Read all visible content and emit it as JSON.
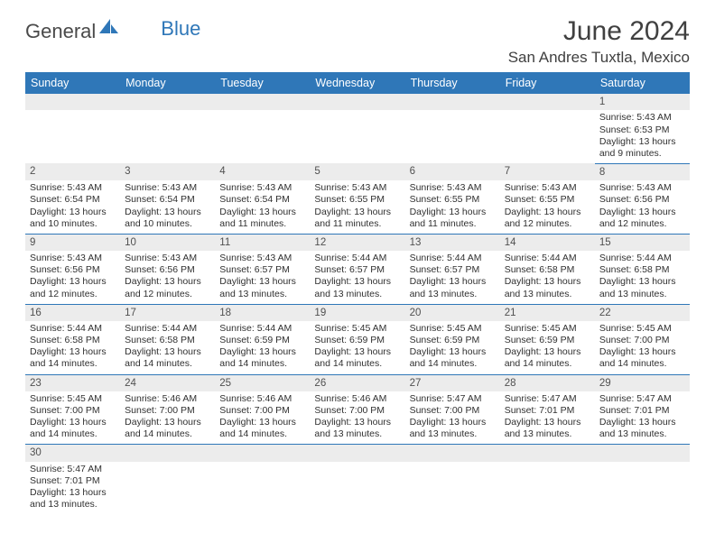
{
  "logo": {
    "text1": "General",
    "text2": "Blue"
  },
  "title": "June 2024",
  "location": "San Andres Tuxtla, Mexico",
  "colors": {
    "header_bg": "#2f77b8",
    "header_fg": "#ffffff",
    "daynum_bg": "#ececec",
    "row_divider": "#2f77b8",
    "logo_blue": "#2f77b8",
    "text": "#303030",
    "title_text": "#404040",
    "background": "#ffffff"
  },
  "typography": {
    "title_fontsize": 30,
    "location_fontsize": 17,
    "dayheader_fontsize": 12.5,
    "daynum_fontsize": 11.5,
    "cell_fontsize": 10.5
  },
  "layout": {
    "columns": 7,
    "start_day_index": 6
  },
  "day_headers": [
    "Sunday",
    "Monday",
    "Tuesday",
    "Wednesday",
    "Thursday",
    "Friday",
    "Saturday"
  ],
  "days": [
    {
      "n": 1,
      "sunrise": "5:43 AM",
      "sunset": "6:53 PM",
      "daylight": "13 hours and 9 minutes."
    },
    {
      "n": 2,
      "sunrise": "5:43 AM",
      "sunset": "6:54 PM",
      "daylight": "13 hours and 10 minutes."
    },
    {
      "n": 3,
      "sunrise": "5:43 AM",
      "sunset": "6:54 PM",
      "daylight": "13 hours and 10 minutes."
    },
    {
      "n": 4,
      "sunrise": "5:43 AM",
      "sunset": "6:54 PM",
      "daylight": "13 hours and 11 minutes."
    },
    {
      "n": 5,
      "sunrise": "5:43 AM",
      "sunset": "6:55 PM",
      "daylight": "13 hours and 11 minutes."
    },
    {
      "n": 6,
      "sunrise": "5:43 AM",
      "sunset": "6:55 PM",
      "daylight": "13 hours and 11 minutes."
    },
    {
      "n": 7,
      "sunrise": "5:43 AM",
      "sunset": "6:55 PM",
      "daylight": "13 hours and 12 minutes."
    },
    {
      "n": 8,
      "sunrise": "5:43 AM",
      "sunset": "6:56 PM",
      "daylight": "13 hours and 12 minutes."
    },
    {
      "n": 9,
      "sunrise": "5:43 AM",
      "sunset": "6:56 PM",
      "daylight": "13 hours and 12 minutes."
    },
    {
      "n": 10,
      "sunrise": "5:43 AM",
      "sunset": "6:56 PM",
      "daylight": "13 hours and 12 minutes."
    },
    {
      "n": 11,
      "sunrise": "5:43 AM",
      "sunset": "6:57 PM",
      "daylight": "13 hours and 13 minutes."
    },
    {
      "n": 12,
      "sunrise": "5:44 AM",
      "sunset": "6:57 PM",
      "daylight": "13 hours and 13 minutes."
    },
    {
      "n": 13,
      "sunrise": "5:44 AM",
      "sunset": "6:57 PM",
      "daylight": "13 hours and 13 minutes."
    },
    {
      "n": 14,
      "sunrise": "5:44 AM",
      "sunset": "6:58 PM",
      "daylight": "13 hours and 13 minutes."
    },
    {
      "n": 15,
      "sunrise": "5:44 AM",
      "sunset": "6:58 PM",
      "daylight": "13 hours and 13 minutes."
    },
    {
      "n": 16,
      "sunrise": "5:44 AM",
      "sunset": "6:58 PM",
      "daylight": "13 hours and 14 minutes."
    },
    {
      "n": 17,
      "sunrise": "5:44 AM",
      "sunset": "6:58 PM",
      "daylight": "13 hours and 14 minutes."
    },
    {
      "n": 18,
      "sunrise": "5:44 AM",
      "sunset": "6:59 PM",
      "daylight": "13 hours and 14 minutes."
    },
    {
      "n": 19,
      "sunrise": "5:45 AM",
      "sunset": "6:59 PM",
      "daylight": "13 hours and 14 minutes."
    },
    {
      "n": 20,
      "sunrise": "5:45 AM",
      "sunset": "6:59 PM",
      "daylight": "13 hours and 14 minutes."
    },
    {
      "n": 21,
      "sunrise": "5:45 AM",
      "sunset": "6:59 PM",
      "daylight": "13 hours and 14 minutes."
    },
    {
      "n": 22,
      "sunrise": "5:45 AM",
      "sunset": "7:00 PM",
      "daylight": "13 hours and 14 minutes."
    },
    {
      "n": 23,
      "sunrise": "5:45 AM",
      "sunset": "7:00 PM",
      "daylight": "13 hours and 14 minutes."
    },
    {
      "n": 24,
      "sunrise": "5:46 AM",
      "sunset": "7:00 PM",
      "daylight": "13 hours and 14 minutes."
    },
    {
      "n": 25,
      "sunrise": "5:46 AM",
      "sunset": "7:00 PM",
      "daylight": "13 hours and 14 minutes."
    },
    {
      "n": 26,
      "sunrise": "5:46 AM",
      "sunset": "7:00 PM",
      "daylight": "13 hours and 13 minutes."
    },
    {
      "n": 27,
      "sunrise": "5:47 AM",
      "sunset": "7:00 PM",
      "daylight": "13 hours and 13 minutes."
    },
    {
      "n": 28,
      "sunrise": "5:47 AM",
      "sunset": "7:01 PM",
      "daylight": "13 hours and 13 minutes."
    },
    {
      "n": 29,
      "sunrise": "5:47 AM",
      "sunset": "7:01 PM",
      "daylight": "13 hours and 13 minutes."
    },
    {
      "n": 30,
      "sunrise": "5:47 AM",
      "sunset": "7:01 PM",
      "daylight": "13 hours and 13 minutes."
    }
  ],
  "labels": {
    "sunrise_prefix": "Sunrise: ",
    "sunset_prefix": "Sunset: ",
    "daylight_prefix": "Daylight: "
  }
}
